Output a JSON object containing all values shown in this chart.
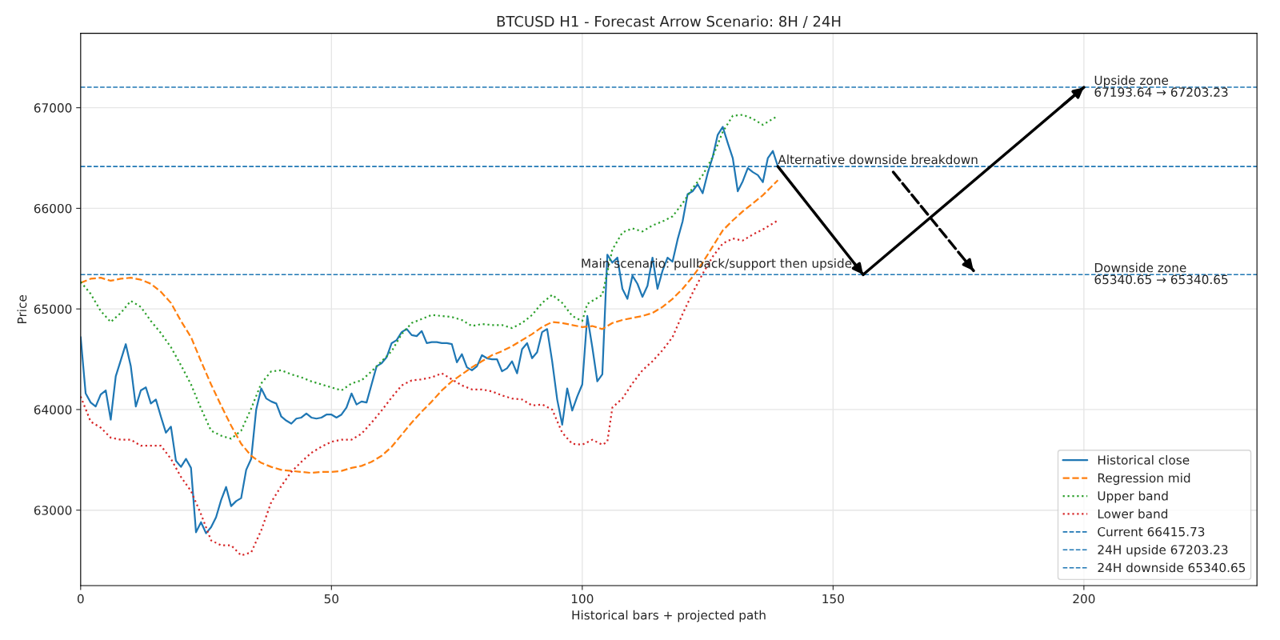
{
  "chart_data": {
    "type": "line",
    "title": "BTCUSD H1 - Forecast Arrow Scenario: 8H / 24H",
    "xlabel": "Historical bars + projected path",
    "ylabel": "Price",
    "xlim": [
      0,
      234.5
    ],
    "ylim": [
      62250,
      67740
    ],
    "xticks": [
      0,
      50,
      100,
      150,
      200
    ],
    "yticks": [
      63000,
      64000,
      65000,
      66000,
      67000
    ],
    "grid": true,
    "legend": "bottom right",
    "series": [
      {
        "name": "Historical close",
        "color": "#1f77b4",
        "line_style": "solid",
        "x": [
          0,
          1,
          2,
          3,
          4,
          5,
          6,
          7,
          8,
          9,
          10,
          11,
          12,
          13,
          14,
          15,
          16,
          17,
          18,
          19,
          20,
          21,
          22,
          23,
          24,
          25,
          26,
          27,
          28,
          29,
          30,
          31,
          32,
          33,
          34,
          35,
          36,
          37,
          38,
          39,
          40,
          41,
          42,
          43,
          44,
          45,
          46,
          47,
          48,
          49,
          50,
          51,
          52,
          53,
          54,
          55,
          56,
          57,
          58,
          59,
          60,
          61,
          62,
          63,
          64,
          65,
          66,
          67,
          68,
          69,
          70,
          71,
          72,
          73,
          74,
          75,
          76,
          77,
          78,
          79,
          80,
          81,
          82,
          83,
          84,
          85,
          86,
          87,
          88,
          89,
          90,
          91,
          92,
          93,
          94,
          95,
          96,
          97,
          98,
          99,
          100,
          101,
          102,
          103,
          104,
          105,
          106,
          107,
          108,
          109,
          110,
          111,
          112,
          113,
          114,
          115,
          116,
          117,
          118,
          119,
          120,
          121,
          122,
          123,
          124,
          125,
          126,
          127,
          128,
          129,
          130,
          131,
          132,
          133,
          134,
          135,
          136,
          137,
          138,
          139
        ],
        "values": [
          64720,
          64160,
          64070,
          64030,
          64150,
          64190,
          63900,
          64330,
          64490,
          64650,
          64430,
          64030,
          64190,
          64220,
          64060,
          64100,
          63930,
          63770,
          63830,
          63490,
          63430,
          63510,
          63420,
          62780,
          62880,
          62770,
          62830,
          62930,
          63100,
          63230,
          63040,
          63090,
          63120,
          63400,
          63510,
          64000,
          64210,
          64110,
          64080,
          64060,
          63930,
          63890,
          63860,
          63910,
          63920,
          63960,
          63920,
          63910,
          63920,
          63950,
          63950,
          63920,
          63950,
          64020,
          64160,
          64050,
          64080,
          64070,
          64250,
          64430,
          64460,
          64520,
          64660,
          64690,
          64770,
          64800,
          64740,
          64730,
          64780,
          64660,
          64670,
          64670,
          64660,
          64660,
          64650,
          64470,
          64550,
          64420,
          64390,
          64430,
          64540,
          64510,
          64500,
          64500,
          64380,
          64410,
          64480,
          64360,
          64600,
          64660,
          64510,
          64570,
          64770,
          64800,
          64480,
          64100,
          63850,
          64210,
          63990,
          64130,
          64250,
          64930,
          64620,
          64280,
          64350,
          65540,
          65460,
          65510,
          65200,
          65100,
          65330,
          65250,
          65120,
          65230,
          65510,
          65200,
          65380,
          65510,
          65470,
          65690,
          65870,
          66140,
          66170,
          66240,
          66150,
          66350,
          66510,
          66730,
          66810,
          66650,
          66500,
          66170,
          66270,
          66400,
          66360,
          66330,
          66260,
          66500,
          66570,
          66416
        ]
      },
      {
        "name": "Regression mid",
        "color": "#ff7f0e",
        "line_style": "dashed",
        "x": [
          0,
          2,
          4,
          6,
          8,
          10,
          12,
          14,
          16,
          18,
          20,
          22,
          24,
          26,
          28,
          30,
          32,
          34,
          36,
          38,
          40,
          42,
          44,
          46,
          48,
          50,
          52,
          54,
          56,
          58,
          60,
          62,
          64,
          66,
          68,
          70,
          72,
          74,
          76,
          78,
          80,
          82,
          84,
          86,
          88,
          90,
          92,
          94,
          96,
          98,
          100,
          102,
          104,
          106,
          108,
          110,
          112,
          114,
          116,
          118,
          120,
          122,
          124,
          126,
          128,
          130,
          132,
          134,
          136,
          138,
          139
        ],
        "values": [
          65260,
          65300,
          65310,
          65280,
          65300,
          65310,
          65290,
          65250,
          65170,
          65060,
          64880,
          64720,
          64480,
          64250,
          64040,
          63840,
          63660,
          63540,
          63470,
          63430,
          63400,
          63390,
          63380,
          63370,
          63380,
          63380,
          63390,
          63420,
          63440,
          63480,
          63540,
          63630,
          63750,
          63870,
          63980,
          64080,
          64190,
          64280,
          64350,
          64420,
          64480,
          64540,
          64580,
          64630,
          64690,
          64750,
          64820,
          64870,
          64860,
          64840,
          64820,
          64830,
          64800,
          64860,
          64890,
          64910,
          64930,
          64960,
          65020,
          65100,
          65200,
          65320,
          65460,
          65620,
          65780,
          65880,
          65970,
          66050,
          66130,
          66230,
          66280
        ]
      },
      {
        "name": "Upper band",
        "color": "#2ca02c",
        "line_style": "dotted",
        "x": [
          0,
          2,
          4,
          6,
          8,
          10,
          12,
          14,
          16,
          18,
          20,
          22,
          24,
          26,
          28,
          30,
          32,
          34,
          36,
          38,
          40,
          42,
          44,
          46,
          48,
          50,
          52,
          54,
          56,
          58,
          60,
          62,
          64,
          66,
          68,
          70,
          72,
          74,
          76,
          78,
          80,
          82,
          84,
          86,
          88,
          90,
          92,
          94,
          96,
          98,
          100,
          101,
          104,
          106,
          108,
          110,
          112,
          114,
          116,
          118,
          120,
          122,
          124,
          126,
          128,
          130,
          132,
          134,
          136,
          138,
          139
        ],
        "values": [
          65270,
          65150,
          64980,
          64870,
          64960,
          65080,
          65020,
          64880,
          64760,
          64620,
          64440,
          64250,
          64010,
          63790,
          63740,
          63710,
          63790,
          64010,
          64260,
          64380,
          64390,
          64350,
          64320,
          64280,
          64250,
          64220,
          64190,
          64260,
          64290,
          64380,
          64480,
          64580,
          64750,
          64860,
          64900,
          64940,
          64930,
          64920,
          64890,
          64830,
          64850,
          64840,
          64840,
          64810,
          64860,
          64940,
          65060,
          65140,
          65060,
          64930,
          64880,
          65050,
          65140,
          65590,
          65760,
          65800,
          65770,
          65830,
          65870,
          65920,
          66050,
          66200,
          66330,
          66510,
          66760,
          66920,
          66930,
          66890,
          66830,
          66890,
          66920
        ]
      },
      {
        "name": "Lower band",
        "color": "#d62728",
        "line_style": "dotted",
        "x": [
          0,
          2,
          4,
          6,
          8,
          10,
          12,
          14,
          16,
          18,
          20,
          22,
          24,
          26,
          28,
          30,
          32,
          34,
          36,
          38,
          40,
          42,
          44,
          46,
          48,
          50,
          52,
          54,
          56,
          58,
          60,
          62,
          64,
          66,
          68,
          70,
          72,
          74,
          76,
          78,
          80,
          82,
          84,
          86,
          88,
          90,
          92,
          94,
          96,
          98,
          100,
          102,
          104,
          105,
          106,
          108,
          110,
          112,
          114,
          116,
          118,
          120,
          122,
          124,
          126,
          128,
          130,
          132,
          134,
          136,
          138,
          139
        ],
        "values": [
          64130,
          63880,
          63820,
          63720,
          63700,
          63700,
          63640,
          63640,
          63640,
          63510,
          63330,
          63190,
          62960,
          62700,
          62650,
          62650,
          62550,
          62580,
          62800,
          63080,
          63240,
          63380,
          63480,
          63570,
          63630,
          63680,
          63700,
          63700,
          63760,
          63870,
          63990,
          64120,
          64240,
          64290,
          64300,
          64320,
          64360,
          64300,
          64240,
          64200,
          64200,
          64180,
          64140,
          64110,
          64100,
          64040,
          64050,
          64000,
          63770,
          63660,
          63650,
          63700,
          63650,
          63680,
          64020,
          64110,
          64260,
          64390,
          64480,
          64590,
          64720,
          64950,
          65160,
          65350,
          65520,
          65650,
          65700,
          65680,
          65740,
          65790,
          65850,
          65880
        ]
      },
      {
        "color": "#000000",
        "line_style": "solid",
        "x": [
          139,
          156,
          200
        ],
        "values": [
          66416,
          65341,
          67203
        ]
      },
      {
        "color": "#000000",
        "line_style": "dashed",
        "x": [
          162,
          178
        ],
        "values": [
          66360,
          65380
        ]
      }
    ],
    "ref_lines": [
      {
        "axis": "y",
        "value": 66415.73,
        "label": "Current 66415.73",
        "color": "#1f77b4",
        "line_style": "dashed"
      },
      {
        "axis": "y",
        "value": 67203.23,
        "label": "24H upside 67203.23",
        "color": "#1f77b4",
        "line_style": "dashed"
      },
      {
        "axis": "y",
        "value": 65340.65,
        "label": "24H downside 65340.65",
        "color": "#1f77b4",
        "line_style": "dashed"
      }
    ],
    "annotations": [
      {
        "text": "Main scenario: pullback/support then upside",
        "x": 156,
        "y": 65340.65
      },
      {
        "text": "Alternative downside breakdown",
        "x": 139,
        "y": 66415.73
      },
      {
        "text": "Upside zone\n67193.64 → 67203.23",
        "x": 202,
        "y": 67203.23
      },
      {
        "text": "Downside zone\n65340.65 → 65340.65",
        "x": 202,
        "y": 65340.65
      }
    ]
  }
}
